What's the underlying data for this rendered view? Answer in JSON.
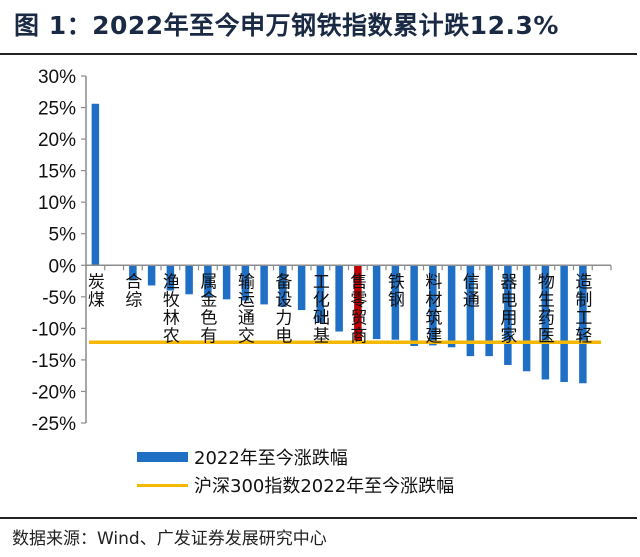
{
  "figure": {
    "title": "图 1：2022年至今申万钢铁指数累计跌12.3%",
    "source": "数据来源：Wind、广发证券发展研究中心"
  },
  "colors": {
    "bar": "#1f6fc5",
    "highlight": "#c00000",
    "benchmark_line": "#f5b800",
    "axis": "#8c8c8c"
  },
  "chart_data": {
    "type": "bar",
    "title": "2022年至今申万钢铁指数累计跌12.3%",
    "xlabel": "",
    "ylabel": "",
    "ylim": [
      -25,
      30
    ],
    "yticks": [
      30,
      25,
      20,
      15,
      10,
      5,
      0,
      -5,
      -10,
      -15,
      -20,
      -25
    ],
    "ytick_labels": [
      "30%",
      "25%",
      "20%",
      "15%",
      "10%",
      "5%",
      "0%",
      "-5%",
      "-10%",
      "-15%",
      "-20%",
      "-25%"
    ],
    "grid": false,
    "categories": [
      "煤炭",
      "",
      "综合",
      "",
      "农林牧渔",
      "",
      "有色金属",
      "",
      "交通运输",
      "",
      "电力设备",
      "",
      "基础化工",
      "",
      "商贸零售",
      "",
      "钢铁",
      "",
      "建筑材料",
      "",
      "通信",
      "",
      "家用电器",
      "",
      "医药生物",
      "",
      "轻工制造",
      ""
    ],
    "series": [
      {
        "name": "2022年至今涨跌幅",
        "values": [
          25.6,
          0.0,
          -2.4,
          -3.2,
          -4.0,
          -4.6,
          -5.1,
          -5.4,
          -5.6,
          -6.2,
          -6.6,
          -7.1,
          -9.1,
          -10.5,
          -12.3,
          -11.7,
          -11.8,
          -12.8,
          -12.7,
          -13.0,
          -14.4,
          -14.4,
          -15.8,
          -16.8,
          -18.1,
          -18.5,
          -18.7,
          0.0
        ],
        "highlight_index": 14
      },
      {
        "name": "沪深300指数2022年至今涨跌幅",
        "type": "line",
        "value": -12.2
      }
    ],
    "legend": {
      "position": "bottom",
      "entries": [
        "2022年至今涨跌幅",
        "沪深300指数2022年至今涨跌幅"
      ]
    }
  }
}
